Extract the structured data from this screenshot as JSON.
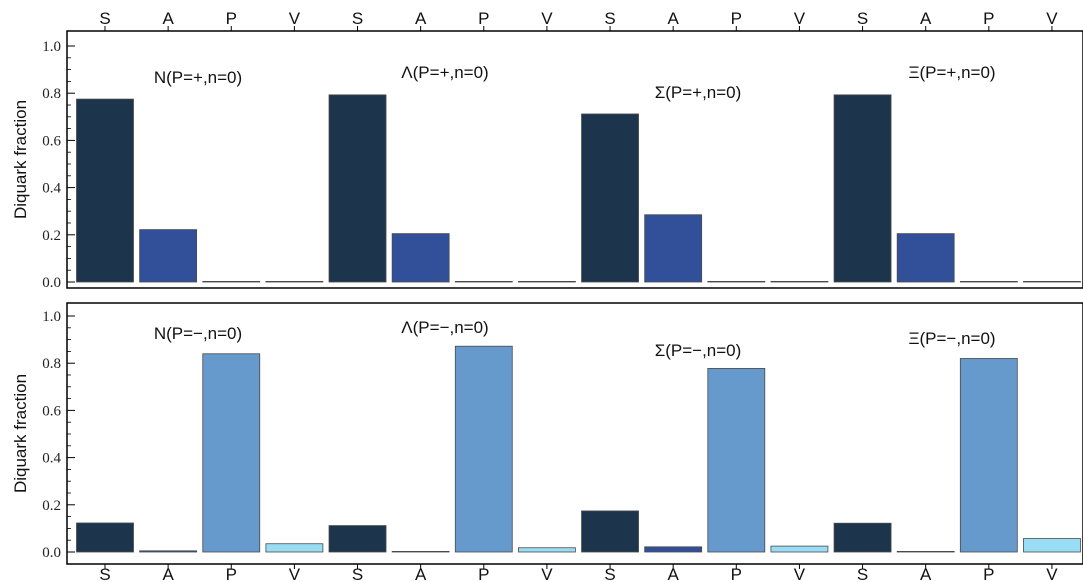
{
  "chart_data": [
    {
      "type": "bar",
      "panel": "top",
      "categories": [
        "S",
        "A",
        "P",
        "V",
        "S",
        "A",
        "P",
        "V",
        "S",
        "A",
        "P",
        "V",
        "S",
        "A",
        "P",
        "V"
      ],
      "groups": [
        "N",
        "Λ",
        "Σ",
        "Ξ"
      ],
      "values": [
        0.775,
        0.222,
        0.002,
        0.001,
        0.793,
        0.205,
        0.002,
        0.001,
        0.712,
        0.285,
        0.002,
        0.001,
        0.793,
        0.205,
        0.002,
        0.001
      ],
      "annotations": [
        "N(P=+,n=0)",
        "Λ(P=+,n=0)",
        "Σ(P=+,n=0)",
        "Ξ(P=+,n=0)"
      ],
      "ylabel": "Diquark fraction",
      "ylim": [
        0,
        1.0
      ],
      "yticks": [
        "0.0",
        "0.2",
        "0.4",
        "0.6",
        "0.8",
        "1.0"
      ],
      "category_colors": {
        "S": "#1c344c",
        "A": "#324f9a",
        "P": "#6699cc",
        "V": "#99ddf5"
      },
      "category_labels_position": "top"
    },
    {
      "type": "bar",
      "panel": "bottom",
      "categories": [
        "S",
        "A",
        "P",
        "V",
        "S",
        "A",
        "P",
        "V",
        "S",
        "A",
        "P",
        "V",
        "S",
        "A",
        "P",
        "V"
      ],
      "groups": [
        "N",
        "Λ",
        "Σ",
        "Ξ"
      ],
      "values": [
        0.123,
        0.005,
        0.84,
        0.035,
        0.112,
        0.001,
        0.872,
        0.018,
        0.174,
        0.022,
        0.778,
        0.025,
        0.122,
        0.001,
        0.82,
        0.057
      ],
      "annotations": [
        "N(P=−,n=0)",
        "Λ(P=−,n=0)",
        "Σ(P=−,n=0)",
        "Ξ(P=−,n=0)"
      ],
      "ylabel": "Diquark fraction",
      "ylim": [
        0,
        1.0
      ],
      "yticks": [
        "0.0",
        "0.2",
        "0.4",
        "0.6",
        "0.8",
        "1.0"
      ],
      "category_colors": {
        "S": "#1c344c",
        "A": "#324f9a",
        "P": "#6699cc",
        "V": "#99ddf5"
      },
      "category_labels_position": "bottom"
    }
  ]
}
